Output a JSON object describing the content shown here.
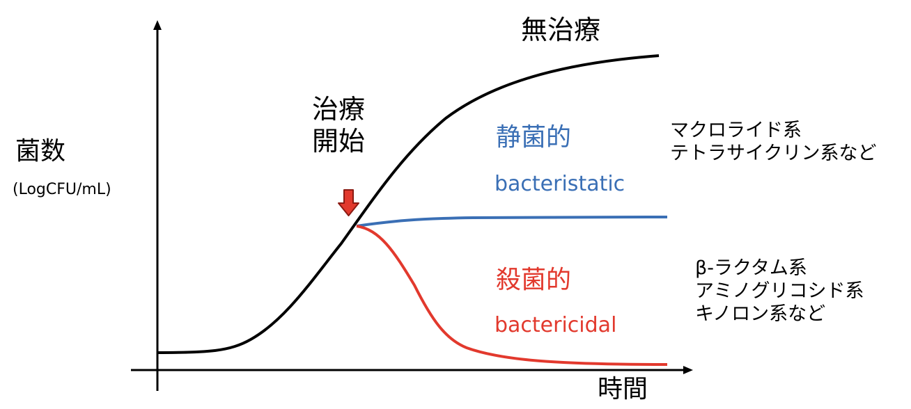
{
  "diagram": {
    "y_axis": {
      "label": "菌数",
      "unit": "(LogCFU/mL)"
    },
    "x_axis": {
      "label": "時間"
    },
    "treatment_start": {
      "line1": "治療",
      "line2": "開始"
    },
    "curves": {
      "untreated": {
        "label": "無治療",
        "color": "#000000"
      },
      "bacteriostatic": {
        "label_jp": "静菌的",
        "label_en": "bacteristatic",
        "color": "#3a6fb5",
        "examples": [
          "マクロライド系",
          "テトラサイクリン系など"
        ]
      },
      "bactericidal": {
        "label_jp": "殺菌的",
        "label_en": "bactericidal",
        "color": "#e2392d",
        "examples": [
          "β-ラクタム系",
          "アミノグリコシド系",
          "キノロン系など"
        ]
      }
    },
    "marker": {
      "icon": "down-arrow-icon",
      "color": "#e2392d"
    }
  }
}
